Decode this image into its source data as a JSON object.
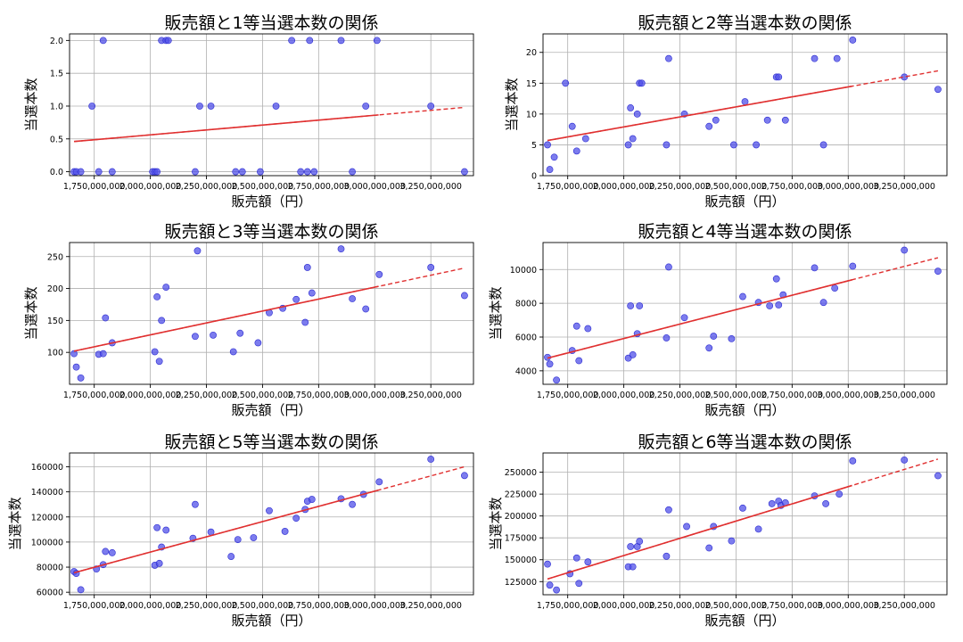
{
  "colors": {
    "point_fill": "#5050e8",
    "point_edge": "#2a2ad0",
    "trend_line": "#e03030",
    "grid": "#b0b0b0",
    "axes": "#000000"
  },
  "chart_data": [
    {
      "type": "scatter",
      "title": "販売額と1等当選本数の関係",
      "xlabel": "販売額（円）",
      "ylabel": "当選本数",
      "xlim": [
        1640000000,
        3440000000
      ],
      "ylim": [
        -0.06,
        2.1
      ],
      "xticks": [
        1750000000,
        2000000000,
        2250000000,
        2500000000,
        2750000000,
        3000000000,
        3250000000
      ],
      "xtick_labels": [
        "1,750,000,000",
        "2,000,000,000",
        "2,250,000,000",
        "2,500,000,000",
        "2,750,000,000",
        "3,000,000,000",
        "3,250,000,000"
      ],
      "yticks": [
        0,
        0.5,
        1,
        1.5,
        2
      ],
      "ytick_labels": [
        "0.0",
        "0.5",
        "1.0",
        "1.5",
        "2.0"
      ],
      "grid": true,
      "trend": {
        "type": "linear",
        "x": [
          1660000000,
          3400000000
        ],
        "y": [
          0.46,
          0.98
        ]
      },
      "x": [
        1660000000,
        1670000000,
        1690000000,
        1740000000,
        1770000000,
        1790000000,
        1830000000,
        2010000000,
        2020000000,
        2030000000,
        2050000000,
        2070000000,
        2080000000,
        2200000000,
        2220000000,
        2270000000,
        2380000000,
        2410000000,
        2490000000,
        2560000000,
        2630000000,
        2670000000,
        2700000000,
        2710000000,
        2730000000,
        2850000000,
        2900000000,
        2960000000,
        3010000000,
        3250000000,
        3400000000
      ],
      "y": [
        0,
        0,
        0,
        1,
        0,
        2,
        0,
        0,
        0,
        0,
        2,
        2,
        2,
        0,
        1,
        1,
        0,
        0,
        0,
        1,
        2,
        0,
        0,
        2,
        0,
        2,
        0,
        1,
        2,
        1,
        0
      ]
    },
    {
      "type": "scatter",
      "title": "販売額と2等当選本数の関係",
      "xlabel": "販売額（円）",
      "ylabel": "当選本数",
      "xlim": [
        1640000000,
        3440000000
      ],
      "ylim": [
        0,
        23
      ],
      "xticks": [
        1750000000,
        2000000000,
        2250000000,
        2500000000,
        2750000000,
        3000000000,
        3250000000
      ],
      "xtick_labels": [
        "1,750,000,000",
        "2,000,000,000",
        "2,250,000,000",
        "2,500,000,000",
        "2,750,000,000",
        "3,000,000,000",
        "3,250,000,000"
      ],
      "yticks": [
        0,
        5,
        10,
        15,
        20
      ],
      "ytick_labels": [
        "0",
        "5",
        "10",
        "15",
        "20"
      ],
      "grid": true,
      "trend": {
        "type": "linear",
        "x": [
          1660000000,
          3400000000
        ],
        "y": [
          5.7,
          17.0
        ]
      },
      "x": [
        1660000000,
        1670000000,
        1690000000,
        1740000000,
        1770000000,
        1790000000,
        1830000000,
        2020000000,
        2030000000,
        2040000000,
        2060000000,
        2070000000,
        2080000000,
        2190000000,
        2200000000,
        2270000000,
        2380000000,
        2410000000,
        2490000000,
        2540000000,
        2590000000,
        2640000000,
        2680000000,
        2690000000,
        2720000000,
        2850000000,
        2890000000,
        2950000000,
        3020000000,
        3250000000,
        3400000000
      ],
      "y": [
        5,
        1,
        3,
        15,
        8,
        4,
        6,
        5,
        11,
        6,
        10,
        15,
        15,
        5,
        19,
        10,
        8,
        9,
        5,
        12,
        5,
        9,
        16,
        16,
        9,
        19,
        5,
        19,
        22,
        16,
        14
      ]
    },
    {
      "type": "scatter",
      "title": "販売額と3等当選本数の関係",
      "xlabel": "販売額（円）",
      "ylabel": "当選本数",
      "xlim": [
        1640000000,
        3440000000
      ],
      "ylim": [
        50,
        272
      ],
      "xticks": [
        1750000000,
        2000000000,
        2250000000,
        2500000000,
        2750000000,
        3000000000,
        3250000000
      ],
      "xtick_labels": [
        "1,750,000,000",
        "2,000,000,000",
        "2,250,000,000",
        "2,500,000,000",
        "2,750,000,000",
        "3,000,000,000",
        "3,250,000,000"
      ],
      "yticks": [
        100,
        150,
        200,
        250
      ],
      "ytick_labels": [
        "100",
        "150",
        "200",
        "250"
      ],
      "grid": true,
      "trend": {
        "type": "linear",
        "x": [
          1660000000,
          3400000000
        ],
        "y": [
          102,
          232
        ]
      },
      "x": [
        1660000000,
        1670000000,
        1690000000,
        1770000000,
        1790000000,
        1800000000,
        1830000000,
        2020000000,
        2030000000,
        2040000000,
        2050000000,
        2070000000,
        2200000000,
        2210000000,
        2280000000,
        2370000000,
        2400000000,
        2480000000,
        2530000000,
        2590000000,
        2650000000,
        2690000000,
        2700000000,
        2720000000,
        2850000000,
        2900000000,
        2960000000,
        3020000000,
        3250000000,
        3400000000
      ],
      "y": [
        98,
        77,
        60,
        97,
        98,
        154,
        115,
        101,
        187,
        86,
        150,
        202,
        125,
        259,
        127,
        101,
        130,
        115,
        162,
        169,
        183,
        147,
        233,
        193,
        262,
        184,
        168,
        222,
        233,
        189
      ]
    },
    {
      "type": "scatter",
      "title": "販売額と4等当選本数の関係",
      "xlabel": "販売額（円）",
      "ylabel": "当選本数",
      "xlim": [
        1640000000,
        3440000000
      ],
      "ylim": [
        3200,
        11600
      ],
      "xticks": [
        1750000000,
        2000000000,
        2250000000,
        2500000000,
        2750000000,
        3000000000,
        3250000000
      ],
      "xtick_labels": [
        "1,750,000,000",
        "2,000,000,000",
        "2,250,000,000",
        "2,500,000,000",
        "2,750,000,000",
        "3,000,000,000",
        "3,250,000,000"
      ],
      "yticks": [
        4000,
        6000,
        8000,
        10000
      ],
      "ytick_labels": [
        "4000",
        "6000",
        "8000",
        "10000"
      ],
      "grid": true,
      "trend": {
        "type": "linear",
        "x": [
          1660000000,
          3400000000
        ],
        "y": [
          4750,
          10700
        ]
      },
      "x": [
        1660000000,
        1670000000,
        1700000000,
        1770000000,
        1790000000,
        1800000000,
        1840000000,
        2020000000,
        2030000000,
        2040000000,
        2060000000,
        2070000000,
        2190000000,
        2200000000,
        2270000000,
        2380000000,
        2400000000,
        2480000000,
        2530000000,
        2600000000,
        2650000000,
        2680000000,
        2690000000,
        2710000000,
        2850000000,
        2890000000,
        2940000000,
        3020000000,
        3250000000,
        3400000000
      ],
      "y": [
        4800,
        4400,
        3450,
        5200,
        6650,
        4600,
        6500,
        4750,
        7850,
        4950,
        6200,
        7850,
        5950,
        10150,
        7150,
        5350,
        6050,
        5900,
        8400,
        8050,
        7850,
        9450,
        7900,
        8500,
        10100,
        8050,
        8900,
        10200,
        11150,
        9900
      ]
    },
    {
      "type": "scatter",
      "title": "販売額と5等当選本数の関係",
      "xlabel": "販売額（円）",
      "ylabel": "当選本数",
      "xlim": [
        1640000000,
        3440000000
      ],
      "ylim": [
        58000,
        171000
      ],
      "xticks": [
        1750000000,
        2000000000,
        2250000000,
        2500000000,
        2750000000,
        3000000000,
        3250000000
      ],
      "xtick_labels": [
        "1,750,000,000",
        "2,000,000,000",
        "2,250,000,000",
        "2,500,000,000",
        "2,750,000,000",
        "3,000,000,000",
        "3,250,000,000"
      ],
      "yticks": [
        60000,
        80000,
        100000,
        120000,
        140000,
        160000
      ],
      "ytick_labels": [
        "60000",
        "80000",
        "100000",
        "120000",
        "140000",
        "160000"
      ],
      "grid": true,
      "trend": {
        "type": "linear",
        "x": [
          1660000000,
          3400000000
        ],
        "y": [
          75500,
          160000
        ]
      },
      "x": [
        1660000000,
        1670000000,
        1690000000,
        1760000000,
        1790000000,
        1800000000,
        1830000000,
        2020000000,
        2030000000,
        2040000000,
        2050000000,
        2070000000,
        2190000000,
        2200000000,
        2270000000,
        2360000000,
        2390000000,
        2460000000,
        2530000000,
        2600000000,
        2650000000,
        2690000000,
        2700000000,
        2720000000,
        2850000000,
        2900000000,
        2950000000,
        3020000000,
        3250000000,
        3400000000
      ],
      "y": [
        76500,
        75000,
        62000,
        78500,
        82000,
        92500,
        91500,
        81500,
        111500,
        83000,
        96000,
        109500,
        103000,
        130000,
        108000,
        88500,
        102000,
        103500,
        125000,
        108500,
        119000,
        126000,
        132500,
        134000,
        134500,
        130000,
        138000,
        148000,
        166000,
        153000
      ]
    },
    {
      "type": "scatter",
      "title": "販売額と6等当選本数の関係",
      "xlabel": "販売額（円）",
      "ylabel": "当選本数",
      "xlim": [
        1640000000,
        3440000000
      ],
      "ylim": [
        110000,
        272000
      ],
      "xticks": [
        1750000000,
        2000000000,
        2250000000,
        2500000000,
        2750000000,
        3000000000,
        3250000000
      ],
      "xtick_labels": [
        "1,750,000,000",
        "2,000,000,000",
        "2,250,000,000",
        "2,500,000,000",
        "2,750,000,000",
        "3,000,000,000",
        "3,250,000,000"
      ],
      "yticks": [
        125000,
        150000,
        175000,
        200000,
        225000,
        250000
      ],
      "ytick_labels": [
        "125000",
        "150000",
        "175000",
        "200000",
        "225000",
        "250000"
      ],
      "grid": true,
      "trend": {
        "type": "linear",
        "x": [
          1660000000,
          3400000000
        ],
        "y": [
          128000,
          265000
        ]
      },
      "x": [
        1660000000,
        1670000000,
        1700000000,
        1760000000,
        1790000000,
        1800000000,
        1840000000,
        2020000000,
        2030000000,
        2040000000,
        2060000000,
        2070000000,
        2190000000,
        2200000000,
        2280000000,
        2380000000,
        2400000000,
        2480000000,
        2530000000,
        2600000000,
        2660000000,
        2690000000,
        2700000000,
        2720000000,
        2850000000,
        2900000000,
        2960000000,
        3020000000,
        3250000000,
        3400000000
      ],
      "y": [
        145000,
        121000,
        115500,
        134000,
        152000,
        123000,
        147500,
        142000,
        165000,
        142000,
        165000,
        171000,
        154000,
        207000,
        188000,
        163500,
        188000,
        171500,
        209000,
        185000,
        214000,
        217000,
        212000,
        215000,
        223000,
        214000,
        225000,
        263000,
        264000,
        246000
      ]
    }
  ]
}
